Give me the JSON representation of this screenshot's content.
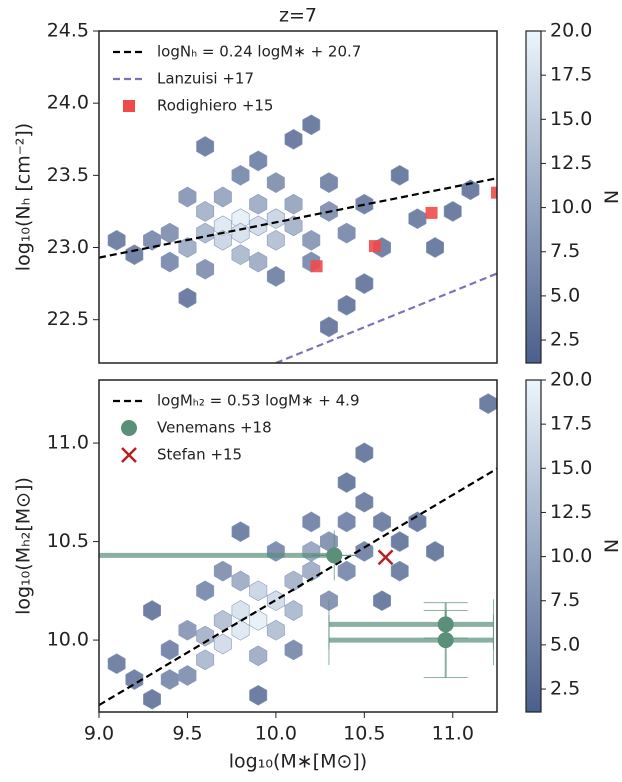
{
  "chart_data": [
    {
      "type": "hexbin",
      "title": "z=7",
      "y_label": "log₁₀(Nₕ [cm⁻²])",
      "xlim": [
        9.0,
        11.25
      ],
      "ylim": [
        22.2,
        24.5
      ],
      "yticks": [
        22.5,
        {
          "value": 23,
          "label": "23.0"
        },
        23.5,
        {
          "value": 24,
          "label": "24.0"
        },
        24.5
      ],
      "legend": "upper left",
      "hexbins": {
        "x": [
          9.7,
          9.8,
          9.9,
          9.8,
          9.7,
          10.0,
          9.6,
          9.6,
          9.9,
          10.0,
          10.1,
          9.7,
          9.5,
          9.8,
          10.1,
          9.9,
          9.4,
          9.4,
          9.5,
          9.8,
          10.0,
          10.2,
          10.3,
          10.2,
          9.6,
          10.0,
          10.4,
          9.9,
          10.3,
          9.3,
          9.2,
          9.1,
          10.5,
          10.6,
          10.5,
          10.8,
          10.9,
          10.7,
          9.6,
          10.1,
          10.4,
          10.2,
          11.0,
          10.3,
          9.5,
          11.1
        ],
        "y": [
          23.15,
          23.2,
          23.15,
          23.1,
          23.05,
          23.2,
          23.1,
          23.25,
          23.3,
          23.05,
          23.15,
          23.35,
          23.0,
          22.95,
          23.3,
          22.9,
          23.1,
          22.9,
          23.35,
          23.5,
          23.45,
          23.05,
          23.25,
          22.9,
          22.85,
          22.8,
          23.1,
          23.6,
          23.45,
          23.05,
          22.95,
          23.05,
          23.3,
          23.0,
          22.75,
          23.2,
          23.0,
          23.5,
          23.7,
          23.75,
          22.6,
          23.85,
          23.25,
          22.45,
          22.65,
          23.4
        ],
        "counts": [
          18,
          19,
          16,
          17,
          15,
          15,
          11,
          10,
          9,
          12,
          10,
          8,
          9,
          11,
          8,
          9,
          5,
          4,
          6,
          4,
          5,
          6,
          5,
          4,
          5,
          3,
          4,
          3,
          3,
          4,
          2,
          2,
          2,
          2,
          1,
          2,
          1,
          1,
          2,
          1,
          1,
          1,
          1,
          1,
          1,
          1
        ]
      },
      "colorbar": {
        "label": "N",
        "lim": [
          1.2,
          20
        ],
        "ticks": [
          2.5,
          {
            "value": 5,
            "label": "5.0"
          },
          7.5,
          {
            "value": 10,
            "label": "10.0"
          },
          12.5,
          {
            "value": 15,
            "label": "15.0"
          },
          17.5,
          {
            "value": 20,
            "label": "20.0"
          }
        ]
      },
      "series": [
        {
          "name": "logNₕ = 0.24 logM∗ + 20.7",
          "kind": "line",
          "color": "#000000",
          "x": [
            9.0,
            11.25
          ],
          "values": [
            22.93,
            23.48
          ]
        },
        {
          "name": "Lanzuisi +17",
          "kind": "line",
          "color": "#7b73b8",
          "x": [
            10.0,
            11.25
          ],
          "values": [
            22.2,
            22.82
          ]
        },
        {
          "name": "Rodighiero +15",
          "kind": "square",
          "color": "#f04a4a",
          "x": [
            10.23,
            10.56,
            10.88,
            11.25
          ],
          "values": [
            22.87,
            23.01,
            23.24,
            23.38
          ]
        }
      ]
    },
    {
      "type": "hexbin",
      "y_label": "log₁₀(Mₕ₂[M⊙])",
      "x_label": "log₁₀(M∗[M⊙])",
      "xlim": [
        9.0,
        11.25
      ],
      "ylim": [
        9.635,
        11.32
      ],
      "xticks": [
        {
          "value": 9,
          "label": "9.0"
        },
        9.5,
        {
          "value": 10,
          "label": "10.0"
        },
        10.5,
        {
          "value": 11,
          "label": "11.0"
        }
      ],
      "yticks": [
        {
          "value": 10,
          "label": "10.0"
        },
        10.5,
        {
          "value": 11,
          "label": "11.0"
        }
      ],
      "legend": "upper left",
      "hexbins": {
        "x": [
          9.8,
          9.9,
          9.8,
          10.0,
          9.9,
          9.7,
          9.6,
          9.7,
          10.1,
          10.0,
          10.1,
          9.8,
          10.2,
          9.6,
          10.2,
          9.9,
          9.5,
          9.4,
          9.5,
          10.3,
          10.4,
          10.3,
          10.0,
          9.7,
          10.2,
          10.4,
          9.6,
          10.1,
          9.4,
          10.5,
          9.2,
          9.1,
          9.3,
          10.5,
          10.6,
          10.7,
          10.7,
          10.4,
          10.5,
          10.8,
          9.8,
          10.6,
          9.9,
          11.2,
          10.9,
          9.3
        ],
        "y": [
          10.05,
          10.1,
          10.15,
          10.2,
          10.25,
          9.98,
          9.9,
          10.1,
          10.3,
          10.05,
          10.15,
          10.3,
          10.35,
          10.02,
          10.45,
          9.92,
          9.82,
          9.8,
          10.05,
          10.5,
          10.35,
          10.2,
          10.45,
          10.35,
          10.6,
          10.6,
          10.25,
          9.95,
          9.95,
          10.45,
          9.8,
          9.88,
          9.7,
          10.7,
          10.6,
          10.5,
          10.35,
          10.8,
          10.95,
          10.6,
          10.55,
          10.2,
          9.72,
          11.2,
          10.45,
          10.15
        ],
        "counts": [
          18,
          19,
          17,
          16,
          15,
          16,
          11,
          12,
          10,
          12,
          11,
          9,
          9,
          10,
          8,
          9,
          5,
          4,
          6,
          5,
          4,
          5,
          4,
          5,
          3,
          3,
          4,
          4,
          3,
          3,
          2,
          2,
          1,
          2,
          2,
          1,
          2,
          1,
          1,
          1,
          2,
          1,
          1,
          1,
          1,
          1
        ]
      },
      "colorbar": {
        "label": "N",
        "lim": [
          1.2,
          20
        ],
        "ticks": [
          2.5,
          {
            "value": 5,
            "label": "5.0"
          },
          7.5,
          {
            "value": 10,
            "label": "10.0"
          },
          12.5,
          {
            "value": 15,
            "label": "15.0"
          },
          17.5,
          {
            "value": 20,
            "label": "20.0"
          }
        ]
      },
      "series": [
        {
          "name": "logMₕ₂ = 0.53 logM∗ + 4.9",
          "kind": "line",
          "color": "#000000",
          "x": [
            9.0,
            11.25
          ],
          "values": [
            9.67,
            10.87
          ]
        },
        {
          "name": "Venemans +18",
          "kind": "errorbar",
          "color": "#5a8f7a",
          "x": [
            10.33,
            10.96,
            10.96
          ],
          "values": [
            10.43,
            10.08,
            10.0
          ],
          "xerr_low": [
            1.33,
            0.66,
            0.66
          ],
          "xerr_high": [
            0,
            0.27,
            0.27
          ],
          "yerr": [
            0,
            0.07,
            0.19
          ]
        },
        {
          "name": "Stefan +15",
          "kind": "cross",
          "color": "#b22222",
          "x": [
            10.62
          ],
          "values": [
            10.42
          ]
        }
      ]
    }
  ]
}
